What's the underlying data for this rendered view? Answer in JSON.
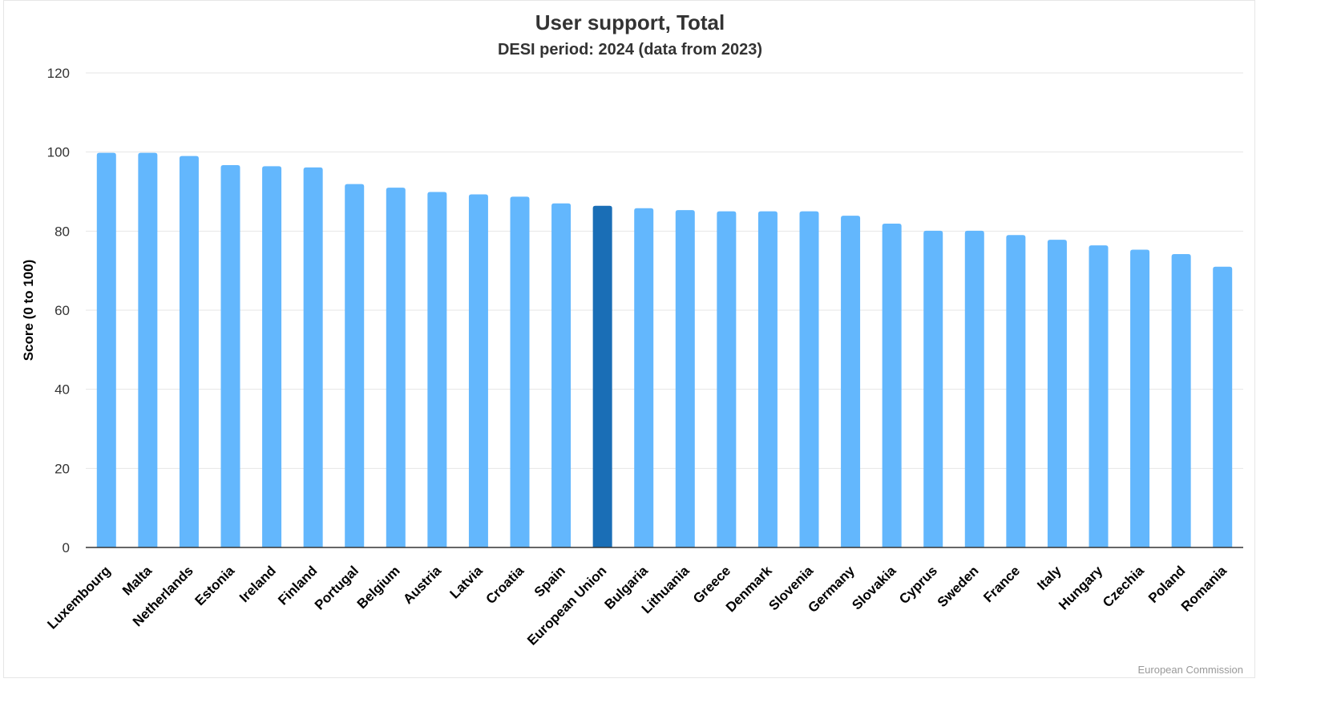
{
  "chart_data": {
    "type": "bar",
    "title": "User support, Total",
    "subtitle": "DESI period: 2024 (data from 2023)",
    "xlabel": "",
    "ylabel": "Score (0 to 100)",
    "ylim": [
      0,
      120
    ],
    "yticks": [
      0,
      20,
      40,
      60,
      80,
      100,
      120
    ],
    "grid": true,
    "categories": [
      "Luxembourg",
      "Malta",
      "Netherlands",
      "Estonia",
      "Ireland",
      "Finland",
      "Portugal",
      "Belgium",
      "Austria",
      "Latvia",
      "Croatia",
      "Spain",
      "European Union",
      "Bulgaria",
      "Lithuania",
      "Greece",
      "Denmark",
      "Slovenia",
      "Germany",
      "Slovakia",
      "Cyprus",
      "Sweden",
      "France",
      "Italy",
      "Hungary",
      "Czechia",
      "Poland",
      "Romania"
    ],
    "values": [
      99.8,
      99.8,
      99.0,
      96.7,
      96.4,
      96.1,
      91.9,
      91.0,
      89.9,
      89.3,
      88.7,
      87.0,
      86.4,
      85.8,
      85.3,
      85.0,
      85.0,
      85.0,
      83.9,
      81.9,
      80.1,
      80.1,
      79.0,
      77.8,
      76.4,
      75.3,
      74.2,
      71.0
    ],
    "highlight_category": "European Union",
    "colors": {
      "bar": "#63b7fd",
      "highlight": "#1a6eb6",
      "grid": "#e6e6e6",
      "axis": "#333333"
    }
  },
  "credit": "European Commission"
}
